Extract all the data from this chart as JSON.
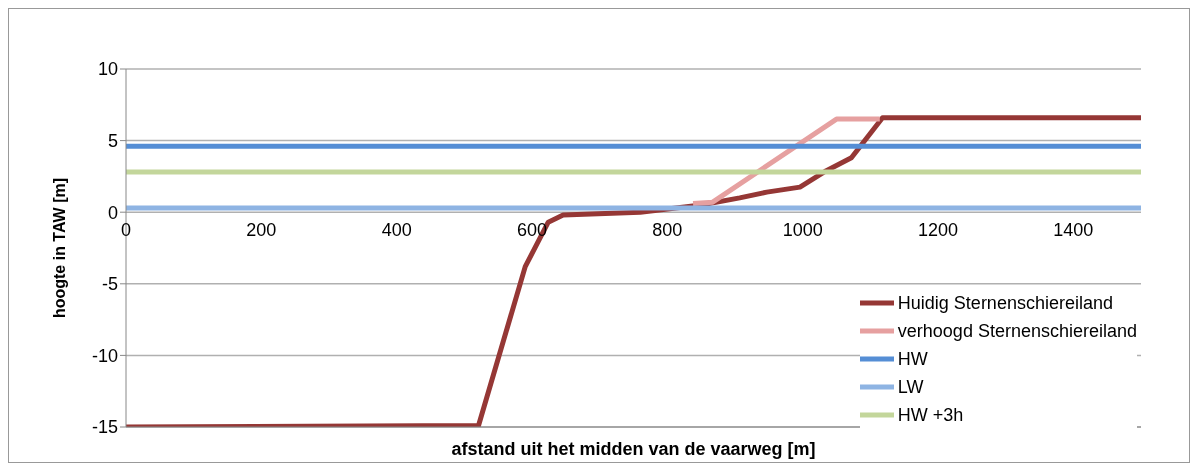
{
  "chart_data": {
    "type": "line",
    "xlabel": "afstand uit het midden van de vaarweg [m]",
    "ylabel": "hoogte in TAW [m]",
    "xlim": [
      0,
      1500
    ],
    "xticks": [
      0,
      200,
      400,
      600,
      800,
      1000,
      1200,
      1400
    ],
    "ylim": [
      -15,
      10
    ],
    "yticks": [
      -15,
      -10,
      -5,
      0,
      5,
      10
    ],
    "grid": "y",
    "legend": "bottom right",
    "marker": "none",
    "line_style": "solid",
    "series": [
      {
        "name": "Huidig Sternenschiereiland",
        "color": "#953735",
        "x": [
          0,
          521,
          590,
          624,
          646,
          760,
          850,
          907,
          947,
          996,
          1035,
          1072,
          1118,
          1500
        ],
        "values": [
          -15,
          -14.9,
          -3.8,
          -0.7,
          -0.2,
          0,
          0.5,
          1.0,
          1.4,
          1.75,
          2.9,
          3.8,
          6.6,
          6.6
        ]
      },
      {
        "name": "verhoogd Sternenschiereiland",
        "color": "#e6a0a0",
        "x": [
          838,
          867,
          1050,
          1114
        ],
        "values": [
          0.6,
          0.7,
          6.5,
          6.5
        ]
      },
      {
        "name": "HW",
        "color": "#558ed5",
        "x": [
          0,
          1500
        ],
        "values": [
          4.6,
          4.6
        ]
      },
      {
        "name": "LW",
        "color": "#8eb4e3",
        "x": [
          0,
          1500
        ],
        "values": [
          0.3,
          0.3
        ]
      },
      {
        "name": "HW +3h",
        "color": "#c3d69b",
        "x": [
          0,
          1500
        ],
        "values": [
          2.8,
          2.8
        ]
      }
    ]
  }
}
